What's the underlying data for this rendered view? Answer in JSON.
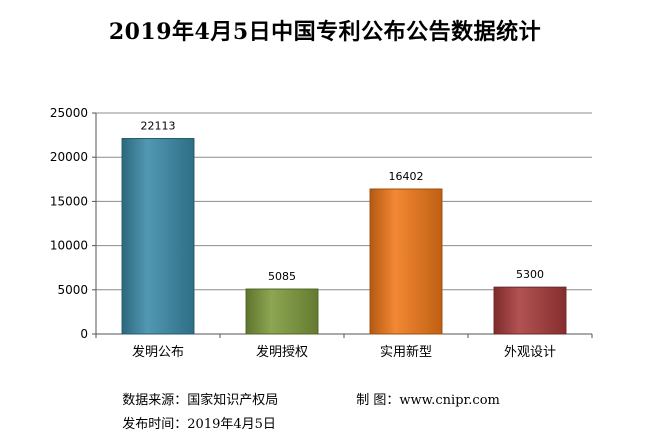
{
  "chart_data": {
    "type": "bar",
    "title": "2019年4月5日中国专利公布公告数据统计",
    "categories": [
      "发明公布",
      "发明授权",
      "实用新型",
      "外观设计"
    ],
    "values": [
      22113,
      5085,
      16402,
      5300
    ],
    "colors": [
      "#3a8aa8",
      "#7d9a3c",
      "#f07818",
      "#a83a3a"
    ],
    "ylim": [
      0,
      25000
    ],
    "yticks": [
      0,
      5000,
      10000,
      15000,
      20000,
      25000
    ],
    "grid": true,
    "legend": "none"
  },
  "footer": {
    "source_label": "数据来源：",
    "source_value": "国家知识产权局",
    "maker_label": "制 图：",
    "maker_value": "www.cnipr.com",
    "date_label": "发布时间：",
    "date_value": "2019年4月5日"
  }
}
